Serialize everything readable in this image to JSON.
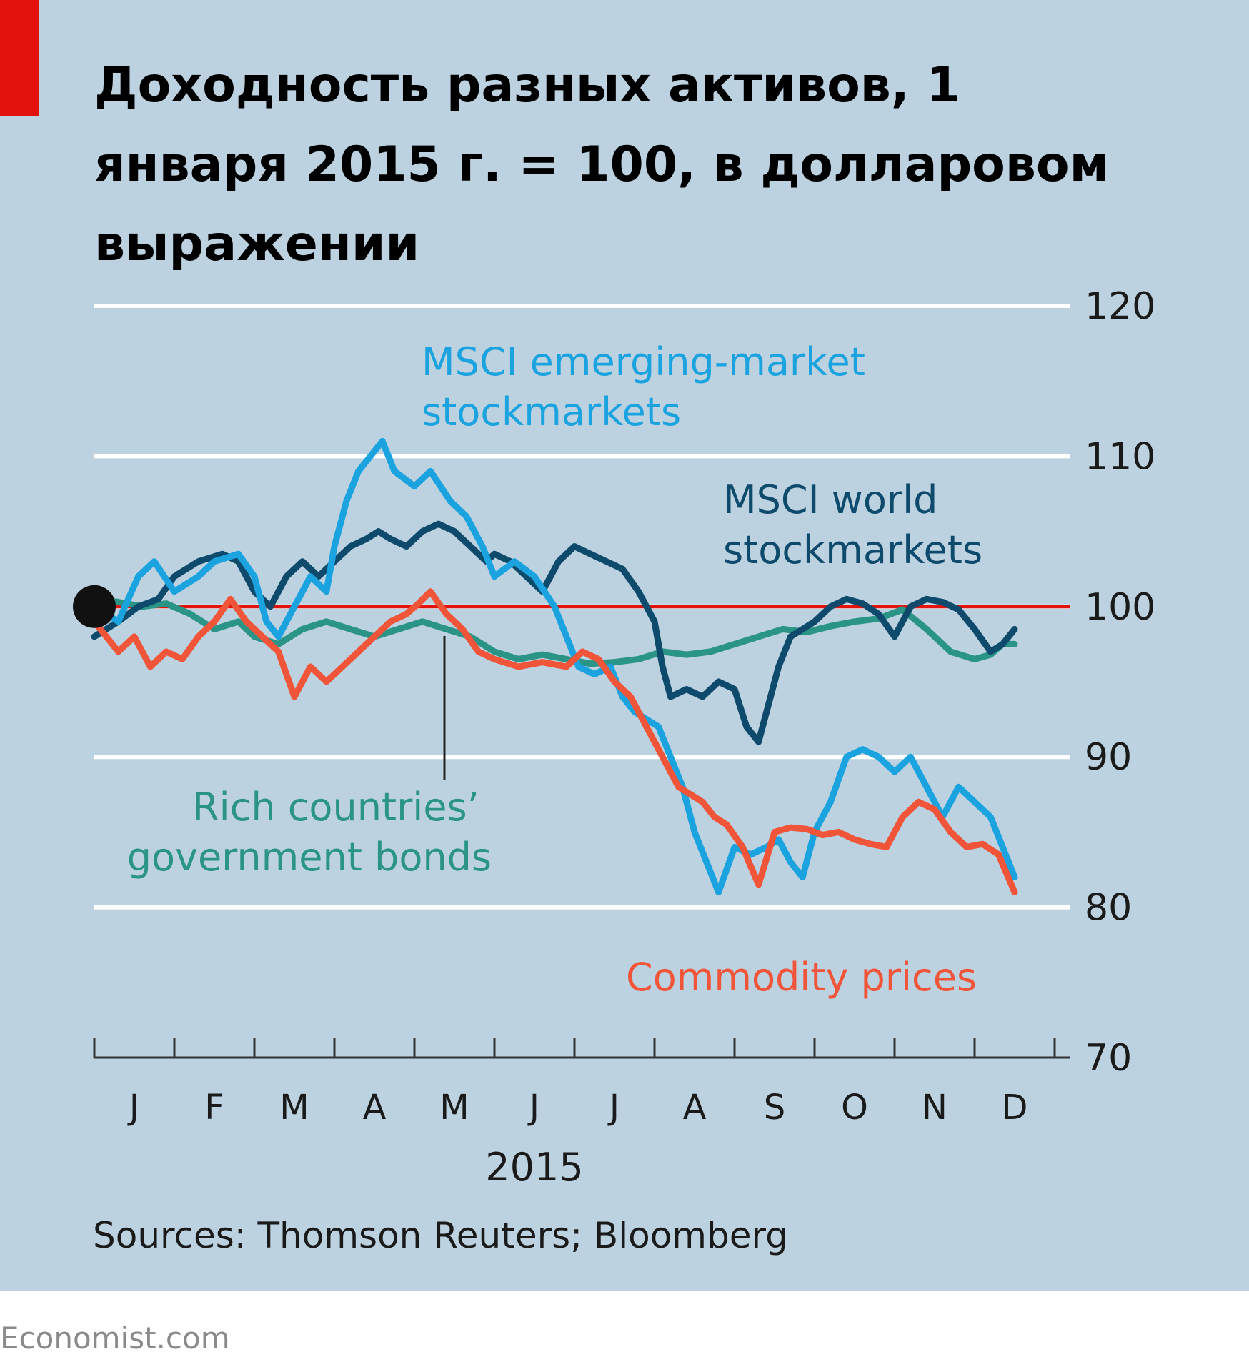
{
  "title": "Доходность разных активов, 1 января 2015 г. = 100, в долларовом выражении",
  "source": "Sources: Thomson Reuters; Bloomberg",
  "footer": "Economist.com",
  "colors": {
    "background": "#bcd2e0",
    "accent": "#e3120b",
    "emerging": "#1aa3df",
    "world": "#0d4a6b",
    "bonds": "#2a9486",
    "commodity": "#f0553a",
    "baseline": "#e3120b",
    "grid": "#ffffff"
  },
  "chart_data": {
    "type": "line",
    "title": "Доходность разных активов, 1 января 2015 г. = 100, в долларовом выражении",
    "xlabel": "2015",
    "ylabel": "",
    "categories": [
      "J",
      "F",
      "M",
      "A",
      "M",
      "J",
      "J",
      "A",
      "S",
      "O",
      "N",
      "D"
    ],
    "x_range": [
      0,
      11.75
    ],
    "ylim": [
      70,
      120
    ],
    "yticks": [
      120,
      110,
      100,
      90,
      80,
      70
    ],
    "baseline": 100,
    "grid": "horizontal",
    "series": [
      {
        "name": "MSCI emerging-market stockmarkets",
        "label_lines": [
          "MSCI emerging-market",
          "stockmarkets"
        ],
        "color": "#1aa3df",
        "x": [
          0,
          0.3,
          0.55,
          0.75,
          1.0,
          1.3,
          1.5,
          1.8,
          2.0,
          2.15,
          2.3,
          2.5,
          2.7,
          2.9,
          3.0,
          3.15,
          3.3,
          3.45,
          3.6,
          3.75,
          4.0,
          4.2,
          4.45,
          4.65,
          4.85,
          5.0,
          5.25,
          5.5,
          5.75,
          5.9,
          6.05,
          6.25,
          6.45,
          6.6,
          6.75,
          6.9,
          7.05,
          7.2,
          7.35,
          7.5,
          7.65,
          7.8,
          8.0,
          8.2,
          8.4,
          8.55,
          8.7,
          8.85,
          9.0,
          9.2,
          9.4,
          9.6,
          9.8,
          10.0,
          10.2,
          10.4,
          10.6,
          10.8,
          11.0,
          11.2,
          11.35,
          11.5
        ],
        "y": [
          100,
          99,
          102,
          103,
          101,
          102,
          103,
          103.5,
          102,
          99,
          98,
          100,
          102,
          101,
          104,
          107,
          109,
          110,
          111,
          109,
          108,
          109,
          107,
          106,
          104,
          102,
          103,
          102,
          100,
          98,
          96,
          95.5,
          96,
          94,
          93,
          92.5,
          92,
          90,
          88,
          85,
          83,
          81,
          84,
          83.5,
          84,
          84.5,
          83,
          82,
          85,
          87,
          90,
          90.5,
          90,
          89,
          90,
          88,
          86,
          88,
          87,
          86,
          84,
          82
        ]
      },
      {
        "name": "MSCI world stockmarkets",
        "label_lines": [
          "MSCI world",
          "stockmarkets"
        ],
        "color": "#0d4a6b",
        "x": [
          0,
          0.3,
          0.55,
          0.8,
          1.0,
          1.3,
          1.6,
          1.8,
          2.0,
          2.2,
          2.4,
          2.6,
          2.8,
          3.0,
          3.2,
          3.4,
          3.55,
          3.7,
          3.9,
          4.1,
          4.3,
          4.5,
          4.7,
          4.9,
          5.0,
          5.2,
          5.4,
          5.6,
          5.8,
          6.0,
          6.2,
          6.4,
          6.6,
          6.8,
          7.0,
          7.1,
          7.2,
          7.4,
          7.6,
          7.8,
          8.0,
          8.15,
          8.3,
          8.4,
          8.55,
          8.7,
          8.85,
          9.0,
          9.2,
          9.4,
          9.6,
          9.8,
          10.0,
          10.2,
          10.4,
          10.6,
          10.8,
          11.0,
          11.2,
          11.35,
          11.5
        ],
        "y": [
          98,
          99,
          100,
          100.5,
          102,
          103,
          103.5,
          103,
          101,
          100,
          102,
          103,
          102,
          103,
          104,
          104.5,
          105,
          104.5,
          104,
          105,
          105.5,
          105,
          104,
          103,
          103.5,
          103,
          102,
          101,
          103,
          104,
          103.5,
          103,
          102.5,
          101,
          99,
          96,
          94,
          94.5,
          94,
          95,
          94.5,
          92,
          91,
          93,
          96,
          98,
          98.5,
          99,
          100,
          100.5,
          100.2,
          99.5,
          98,
          100,
          100.5,
          100.3,
          99.8,
          98.5,
          97,
          97.5,
          98.5
        ]
      },
      {
        "name": "Rich countries' government bonds",
        "label_lines": [
          "Rich countries’",
          "government bonds"
        ],
        "color": "#2a9486",
        "x": [
          0,
          0.3,
          0.6,
          0.9,
          1.2,
          1.5,
          1.8,
          2.0,
          2.3,
          2.6,
          2.9,
          3.2,
          3.5,
          3.8,
          4.1,
          4.4,
          4.7,
          5.0,
          5.3,
          5.6,
          5.9,
          6.2,
          6.5,
          6.8,
          7.1,
          7.4,
          7.7,
          8.0,
          8.3,
          8.6,
          8.9,
          9.2,
          9.5,
          9.8,
          10.1,
          10.4,
          10.7,
          11.0,
          11.2,
          11.35,
          11.5
        ],
        "y": [
          100.5,
          100.3,
          100,
          100.2,
          99.5,
          98.5,
          99,
          98,
          97.5,
          98.5,
          99,
          98.5,
          98,
          98.5,
          99,
          98.5,
          98,
          97,
          96.5,
          96.8,
          96.5,
          96.2,
          96.3,
          96.5,
          97,
          96.8,
          97,
          97.5,
          98,
          98.5,
          98.3,
          98.7,
          99,
          99.2,
          99.8,
          98.5,
          97,
          96.5,
          96.8,
          97.5,
          97.5
        ]
      },
      {
        "name": "Commodity prices",
        "label_lines": [
          "Commodity prices"
        ],
        "color": "#f0553a",
        "x": [
          0,
          0.3,
          0.5,
          0.7,
          0.9,
          1.1,
          1.3,
          1.5,
          1.7,
          1.9,
          2.1,
          2.3,
          2.5,
          2.7,
          2.9,
          3.1,
          3.3,
          3.5,
          3.7,
          3.9,
          4.05,
          4.2,
          4.4,
          4.6,
          4.8,
          5.0,
          5.3,
          5.6,
          5.9,
          6.1,
          6.3,
          6.5,
          6.7,
          6.9,
          7.1,
          7.3,
          7.45,
          7.6,
          7.75,
          7.9,
          8.1,
          8.3,
          8.5,
          8.7,
          8.9,
          9.1,
          9.3,
          9.5,
          9.7,
          9.9,
          10.1,
          10.3,
          10.5,
          10.7,
          10.9,
          11.1,
          11.3,
          11.5
        ],
        "y": [
          99,
          97,
          98,
          96,
          97,
          96.5,
          98,
          99,
          100.5,
          99,
          98,
          97,
          94,
          96,
          95,
          96,
          97,
          98,
          99,
          99.5,
          100.2,
          101,
          99.5,
          98.5,
          97,
          96.5,
          96,
          96.3,
          96,
          97,
          96.5,
          95,
          94,
          92,
          90,
          88,
          87.5,
          87,
          86,
          85.5,
          84,
          81.5,
          85,
          85.3,
          85.2,
          84.8,
          85,
          84.5,
          84.2,
          84,
          86,
          87,
          86.5,
          85,
          84,
          84.2,
          83.5,
          81
        ]
      }
    ]
  }
}
